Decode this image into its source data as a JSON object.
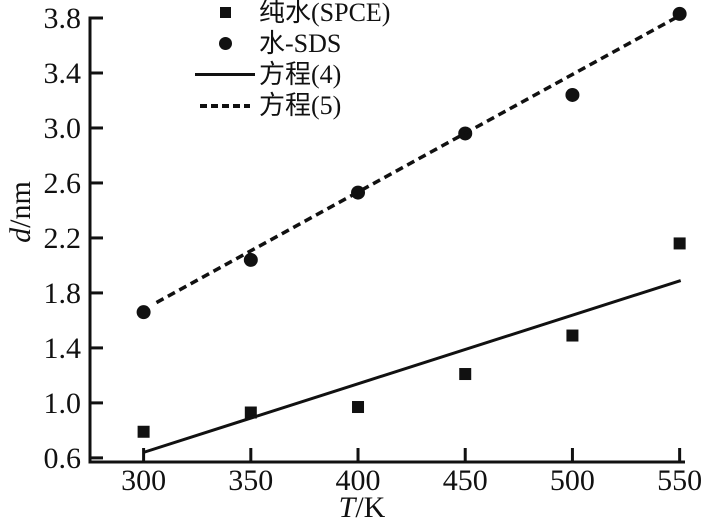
{
  "figure": {
    "background": "#ffffff",
    "ink_color": "#111111"
  },
  "legend": {
    "items": [
      {
        "label": "纯水(SPCE)",
        "marker": "square-marker"
      },
      {
        "label": "水-SDS",
        "marker": "circle-marker"
      },
      {
        "label": "方程(4)",
        "marker": "solid-line-sample"
      },
      {
        "label": "方程(5)",
        "marker": "dashed-line-sample"
      }
    ]
  },
  "chart_data": {
    "type": "scatter",
    "title": "",
    "xlabel": "T/K",
    "ylabel": "d/nm",
    "xlim": [
      275,
      552.5
    ],
    "ylim": [
      0.57,
      3.8
    ],
    "x_ticks": [
      "300",
      "350",
      "400",
      "450",
      "500",
      "550"
    ],
    "x_tick_values": [
      300,
      350,
      400,
      450,
      500,
      550
    ],
    "y_ticks": [
      "0.6",
      "1.0",
      "1.4",
      "1.8",
      "2.2",
      "2.6",
      "3.0",
      "3.4",
      "3.8"
    ],
    "y_tick_values": [
      0.6,
      1.0,
      1.4,
      1.8,
      2.2,
      2.6,
      3.0,
      3.4,
      3.8
    ],
    "grid": false,
    "legend_position": "top-center-inside",
    "series": [
      {
        "name": "纯水(SPCE)",
        "kind": "scatter",
        "marker": "square",
        "x": [
          300,
          350,
          400,
          450,
          500,
          550
        ],
        "y": [
          0.79,
          0.93,
          0.97,
          1.21,
          1.49,
          2.16
        ]
      },
      {
        "name": "水-SDS",
        "kind": "scatter",
        "marker": "circle",
        "x": [
          300,
          350,
          400,
          450,
          500,
          550
        ],
        "y": [
          1.66,
          2.04,
          2.53,
          2.96,
          3.24,
          3.83
        ]
      },
      {
        "name": "方程(4)",
        "kind": "line",
        "style": "solid",
        "x": [
          300,
          550.5
        ],
        "y": [
          0.64,
          1.89
        ]
      },
      {
        "name": "方程(5)",
        "kind": "line",
        "style": "dashed",
        "x": [
          306,
          548
        ],
        "y": [
          1.73,
          3.8
        ]
      }
    ]
  }
}
